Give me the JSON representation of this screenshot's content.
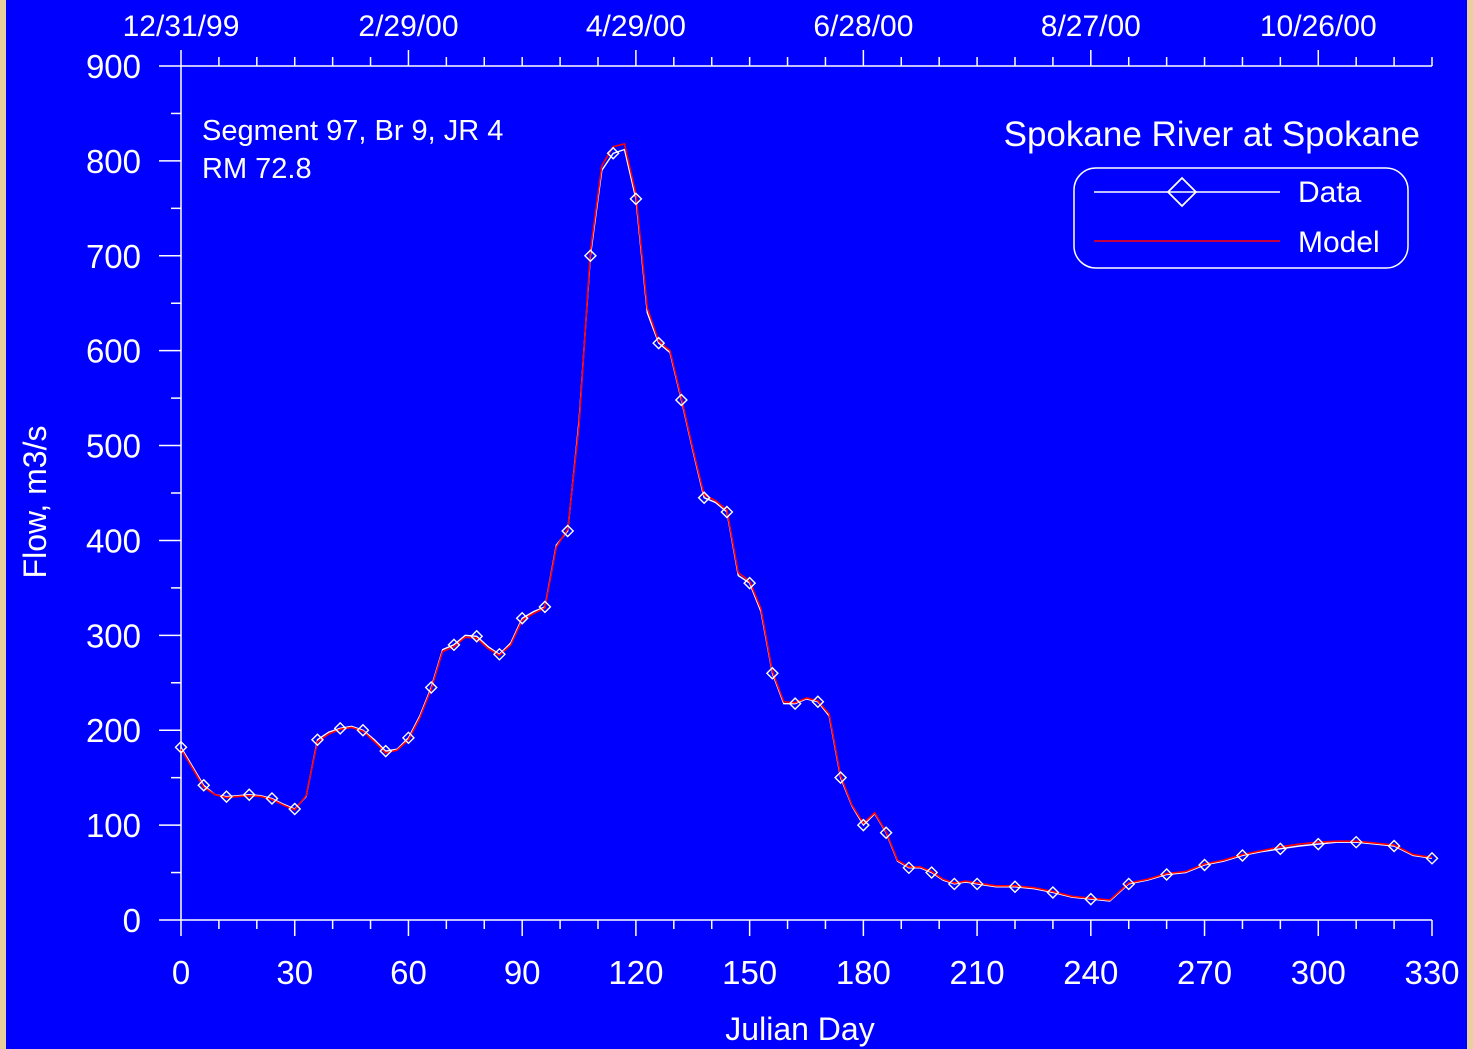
{
  "chart_data": {
    "type": "line",
    "title": "Spokane River at Spokane",
    "annotation_lines": [
      "Segment 97, Br 9, JR 4",
      "RM 72.8"
    ],
    "xlabel": "Julian Day",
    "ylabel": "Flow, m3/s",
    "xlim": [
      0,
      330
    ],
    "ylim": [
      0,
      900
    ],
    "x_ticks": [
      "0",
      "30",
      "60",
      "90",
      "120",
      "150",
      "180",
      "210",
      "240",
      "270",
      "300",
      "330"
    ],
    "y_ticks": [
      "0",
      "100",
      "200",
      "300",
      "400",
      "500",
      "600",
      "700",
      "800",
      "900"
    ],
    "top_date_ticks": [
      "12/31/99",
      "2/29/00",
      "4/29/00",
      "6/28/00",
      "8/27/00",
      "10/26/00"
    ],
    "legend_placement": "top-right",
    "grid": false,
    "colors": {
      "background": "#0000ff",
      "axis": "#ffffff",
      "data": "#ffffff",
      "model": "#ff0000"
    },
    "series": [
      {
        "name": "Data",
        "marker": "diamond",
        "x": [
          0,
          3,
          6,
          9,
          12,
          15,
          18,
          21,
          24,
          27,
          30,
          33,
          36,
          39,
          42,
          45,
          48,
          51,
          54,
          57,
          60,
          63,
          66,
          69,
          72,
          75,
          78,
          81,
          84,
          87,
          90,
          93,
          96,
          99,
          102,
          105,
          108,
          111,
          114,
          117,
          120,
          123,
          126,
          129,
          132,
          135,
          138,
          141,
          144,
          147,
          150,
          153,
          156,
          159,
          162,
          165,
          168,
          171,
          174,
          177,
          180,
          183,
          186,
          189,
          192,
          195,
          198,
          201,
          204,
          207,
          210,
          215,
          220,
          225,
          230,
          235,
          240,
          245,
          250,
          255,
          260,
          265,
          270,
          275,
          280,
          285,
          290,
          295,
          300,
          305,
          310,
          315,
          320,
          325,
          330
        ],
        "y": [
          182,
          162,
          142,
          132,
          130,
          131,
          132,
          131,
          128,
          122,
          117,
          130,
          190,
          198,
          202,
          204,
          200,
          190,
          178,
          180,
          192,
          215,
          245,
          285,
          290,
          300,
          299,
          288,
          280,
          292,
          318,
          325,
          330,
          395,
          410,
          525,
          700,
          790,
          808,
          812,
          760,
          640,
          608,
          598,
          548,
          495,
          445,
          440,
          430,
          363,
          355,
          325,
          260,
          228,
          228,
          233,
          230,
          215,
          150,
          120,
          100,
          112,
          92,
          62,
          55,
          55,
          50,
          42,
          38,
          40,
          38,
          35,
          35,
          33,
          29,
          24,
          22,
          20,
          38,
          42,
          48,
          50,
          58,
          62,
          68,
          72,
          75,
          78,
          80,
          82,
          82,
          80,
          78,
          68,
          65
        ]
      },
      {
        "name": "Model",
        "x": [
          0,
          3,
          6,
          9,
          12,
          15,
          18,
          21,
          24,
          27,
          30,
          33,
          36,
          39,
          42,
          45,
          48,
          51,
          54,
          57,
          60,
          63,
          66,
          69,
          72,
          75,
          78,
          81,
          84,
          87,
          90,
          93,
          96,
          99,
          102,
          105,
          108,
          111,
          114,
          117,
          120,
          123,
          126,
          129,
          132,
          135,
          138,
          141,
          144,
          147,
          150,
          153,
          156,
          159,
          162,
          165,
          168,
          171,
          174,
          177,
          180,
          183,
          186,
          189,
          192,
          195,
          198,
          201,
          204,
          207,
          210,
          215,
          220,
          225,
          230,
          235,
          240,
          245,
          250,
          255,
          260,
          265,
          270,
          275,
          280,
          285,
          290,
          295,
          300,
          305,
          310,
          315,
          320,
          325,
          330
        ],
        "y": [
          180,
          160,
          140,
          132,
          129,
          130,
          131,
          130,
          127,
          121,
          116,
          131,
          188,
          196,
          201,
          203,
          199,
          188,
          176,
          179,
          190,
          213,
          243,
          283,
          288,
          298,
          297,
          286,
          279,
          290,
          316,
          323,
          329,
          393,
          412,
          520,
          705,
          795,
          815,
          818,
          765,
          645,
          610,
          600,
          550,
          497,
          448,
          442,
          432,
          366,
          357,
          328,
          262,
          230,
          229,
          234,
          231,
          217,
          152,
          121,
          102,
          113,
          93,
          63,
          56,
          56,
          51,
          43,
          39,
          41,
          39,
          36,
          36,
          34,
          30,
          25,
          23,
          21,
          39,
          43,
          49,
          51,
          59,
          63,
          69,
          73,
          77,
          80,
          82,
          83,
          83,
          81,
          79,
          69,
          66
        ]
      }
    ]
  }
}
